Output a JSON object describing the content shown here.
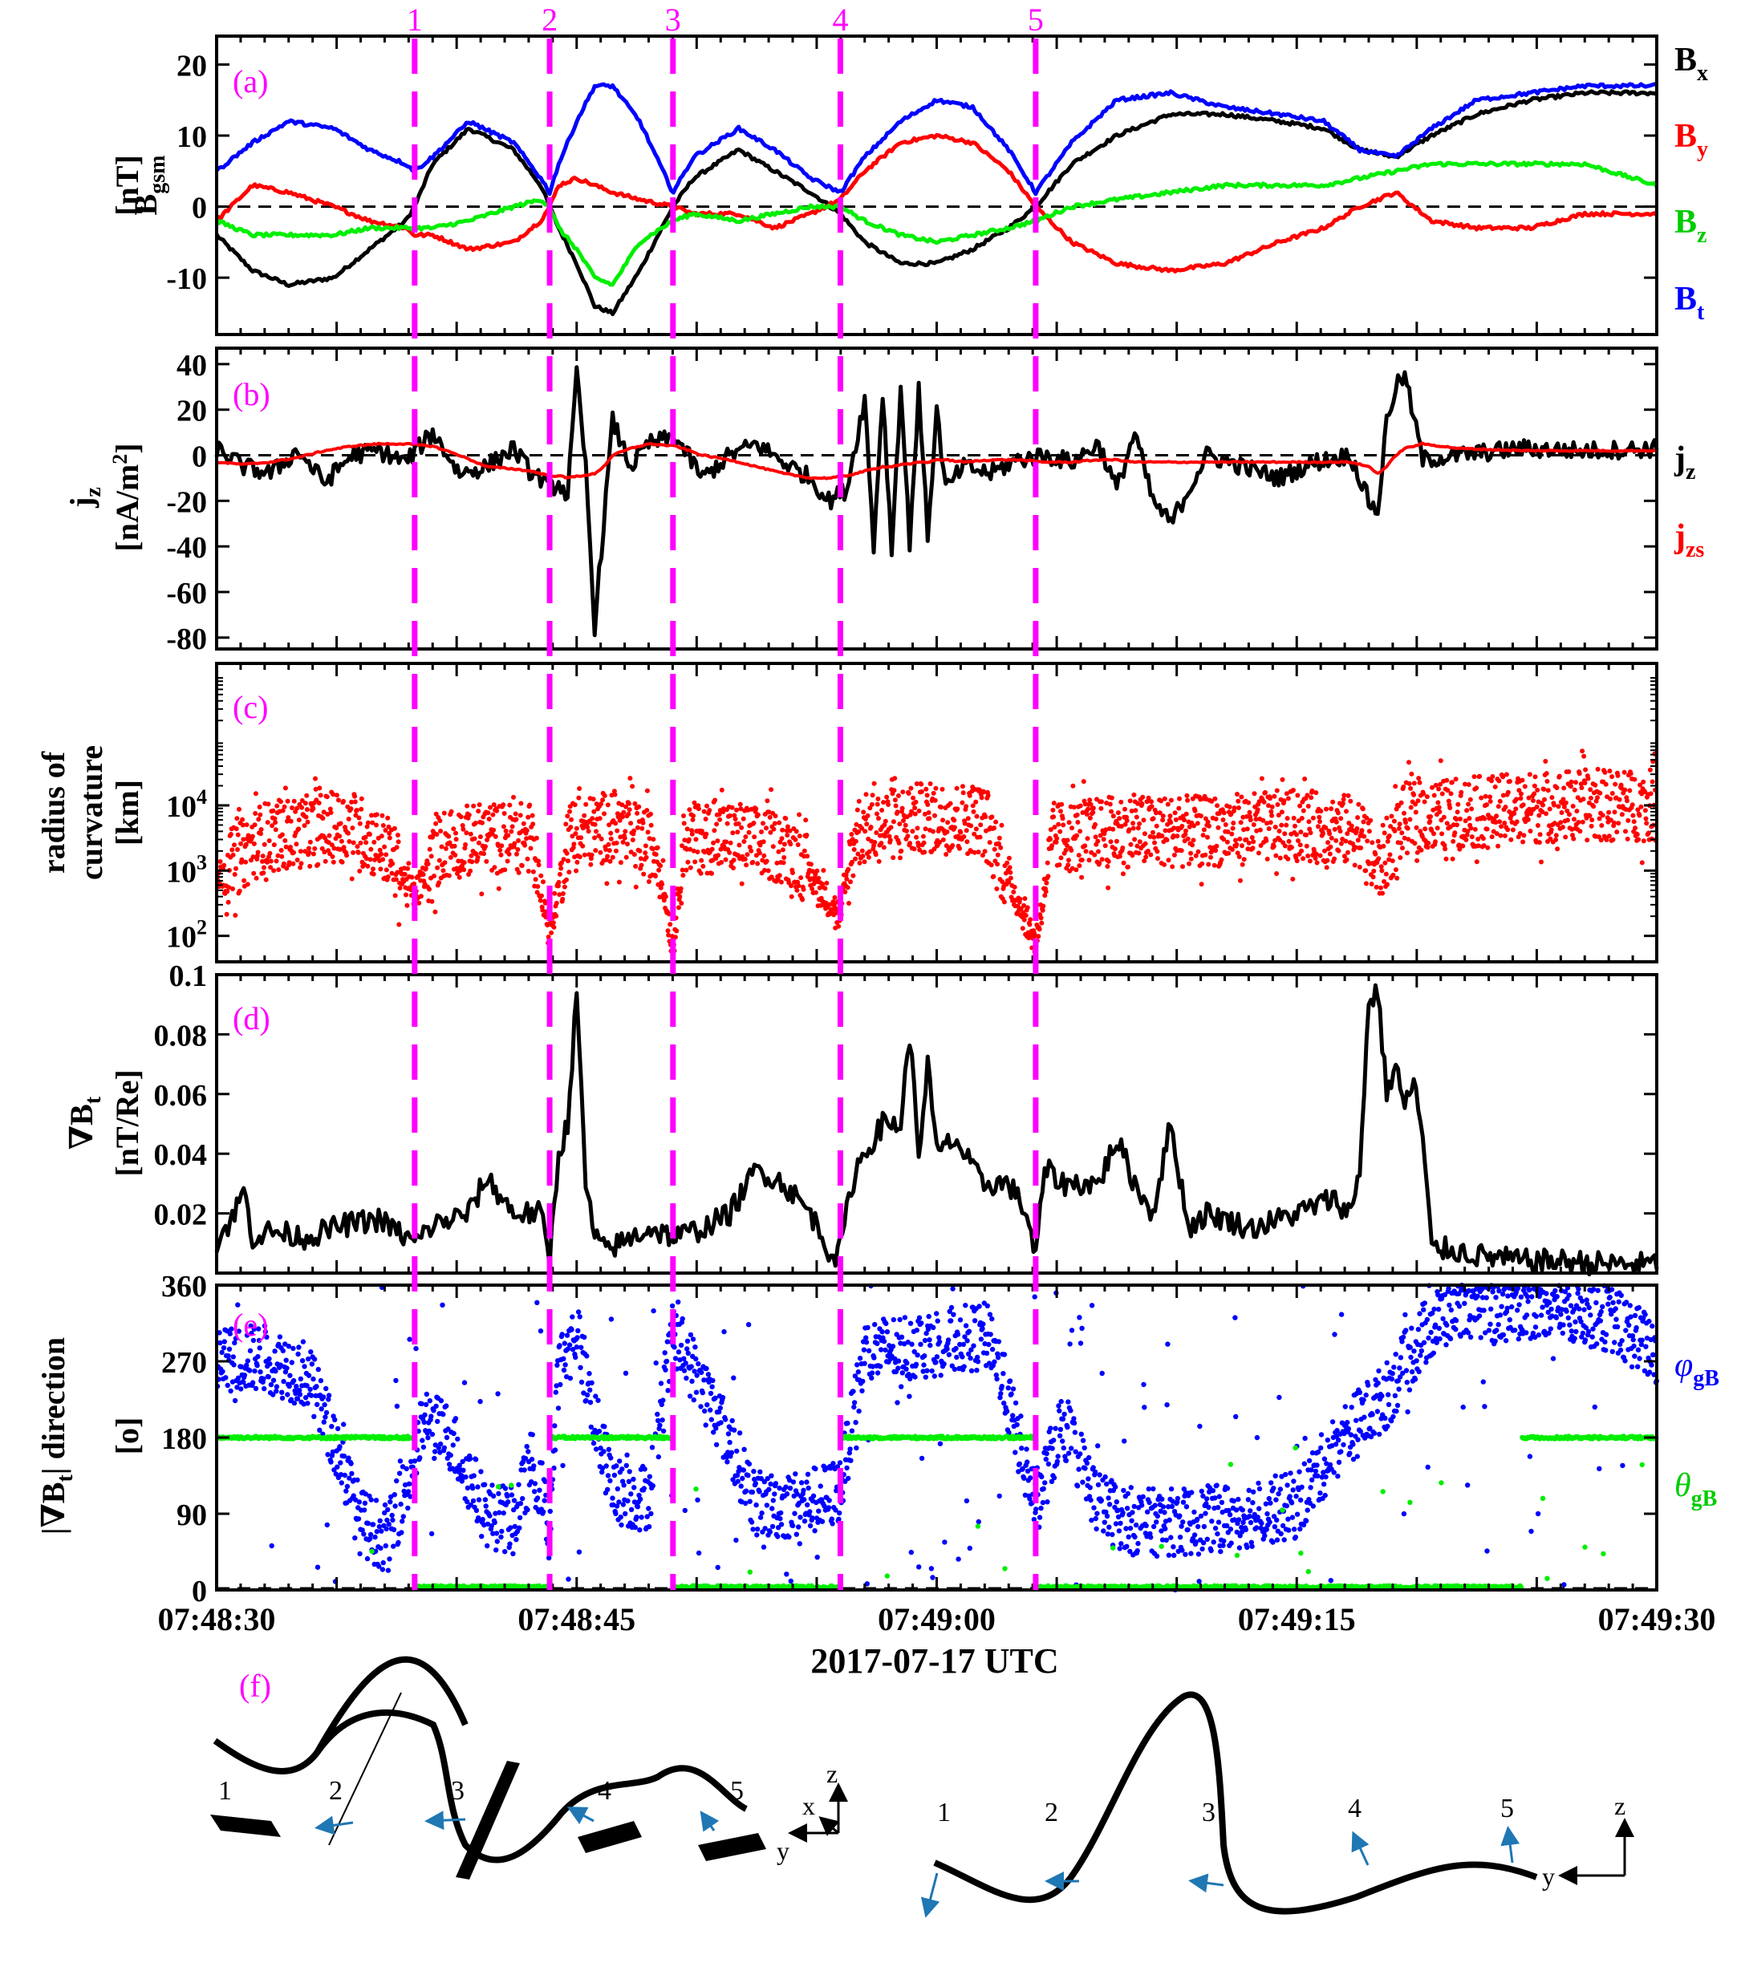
{
  "figure": {
    "time_ticks": [
      "07:48:30",
      "07:48:45",
      "07:49:00",
      "07:49:15",
      "07:49:30"
    ],
    "tick_seconds": [
      0,
      15,
      30,
      45,
      60
    ],
    "xlabel": "2017-07-17 UTC",
    "event_lines": [
      {
        "label": "1",
        "t": 22.0
      },
      {
        "label": "2",
        "t": 37.0
      },
      {
        "label": "3",
        "t": 50.7
      },
      {
        "label": "4",
        "t": 69.3
      },
      {
        "label": "5",
        "t": 91.0
      }
    ],
    "colors": {
      "black": "#000000",
      "red": "#ff0000",
      "blue": "#0000ff",
      "green": "#00ee00",
      "magenta": "#ff00ff",
      "arrow": "#1f77b4"
    }
  },
  "chart_data": [
    {
      "type": "line",
      "panel": "(a)",
      "ylabel_main": "B",
      "ylabel_sub": "gsm",
      "ylabel_unit": "[nT]",
      "ylim": [
        -18,
        24
      ],
      "yticks": [
        -10,
        0,
        10,
        20
      ],
      "yticklabels": [
        "-10",
        "0",
        "10",
        "20"
      ],
      "x_seconds": [
        0,
        4,
        8,
        13,
        17,
        21,
        22,
        24,
        28,
        33,
        36,
        37,
        38,
        40,
        42,
        44,
        47,
        50.7,
        53,
        58,
        62,
        66,
        69.3,
        72,
        76,
        80,
        84,
        88,
        91,
        95,
        100,
        106,
        112,
        118,
        123,
        127,
        131,
        135,
        140,
        146,
        152,
        160
      ],
      "series": [
        {
          "name": "B",
          "sub": "x",
          "color": "#000000",
          "values": [
            -4,
            -9,
            -11,
            -10,
            -6,
            -2,
            0,
            6,
            11,
            8,
            3,
            0,
            -3,
            -8,
            -14,
            -15,
            -9,
            0,
            4,
            8,
            5,
            2,
            -1,
            -5,
            -8,
            -8,
            -6,
            -3,
            0,
            6,
            10,
            13,
            13,
            12,
            11,
            8,
            7,
            10,
            13,
            15,
            16,
            16
          ]
        },
        {
          "name": "B",
          "sub": "y",
          "color": "#ff0000",
          "values": [
            -2,
            3,
            2,
            0,
            -2,
            -3,
            -4,
            -4,
            -6,
            -5,
            -2,
            0,
            3,
            4,
            3,
            2,
            1,
            0,
            -1,
            -1,
            -3,
            -1,
            1,
            5,
            9,
            10,
            9,
            5,
            0,
            -5,
            -8,
            -9,
            -8,
            -5,
            -3,
            0,
            2,
            -2,
            -3,
            -3,
            -1,
            -1
          ]
        },
        {
          "name": "B",
          "sub": "z",
          "color": "#00ee00",
          "values": [
            -2,
            -4,
            -4,
            -4,
            -3,
            -3,
            -3,
            -3,
            -2,
            0,
            1,
            0,
            -3,
            -6,
            -10,
            -11,
            -5,
            -2,
            -1,
            -2,
            -1,
            0,
            0,
            -2,
            -4,
            -5,
            -4,
            -3,
            -2,
            0,
            1,
            2,
            3,
            3,
            3,
            4,
            5,
            6,
            6,
            6,
            6,
            3
          ]
        },
        {
          "name": "B",
          "sub": "t",
          "color": "#0000ff",
          "values": [
            5,
            9,
            12,
            11,
            8,
            6,
            5,
            7,
            12,
            9,
            4,
            2,
            6,
            12,
            17,
            17,
            12,
            2,
            7,
            11,
            8,
            4,
            2,
            7,
            12,
            15,
            14,
            8,
            2,
            9,
            15,
            16,
            14,
            13,
            12,
            8,
            7,
            11,
            15,
            16,
            17,
            17
          ]
        }
      ]
    },
    {
      "type": "line",
      "panel": "(b)",
      "ylabel_main": "j",
      "ylabel_sub": "z",
      "ylabel_unit": "[nA/m",
      "ylabel_unit_sup": "2",
      "ylabel_unit_end": "]",
      "ylim": [
        -85,
        47
      ],
      "yticks": [
        -80,
        -60,
        -40,
        -20,
        0,
        20,
        40
      ],
      "yticklabels": [
        "-80",
        "-60",
        "-40",
        "-20",
        "0",
        "20",
        "40"
      ],
      "x_seconds": [
        0,
        3,
        6,
        9,
        12,
        15,
        18,
        21,
        24,
        27,
        30,
        33,
        35,
        36,
        37,
        38,
        39,
        40,
        41,
        42,
        43,
        44,
        46,
        48,
        51,
        54,
        57,
        60,
        63,
        66,
        68,
        70,
        72,
        73,
        74,
        75,
        76,
        77,
        78,
        79,
        80,
        81,
        83,
        86,
        89,
        92,
        95,
        98,
        100,
        102,
        104,
        106,
        110,
        114,
        118,
        122,
        126,
        128,
        129,
        130,
        131,
        132,
        134,
        138,
        145,
        152,
        160
      ],
      "series": [
        {
          "name": "j",
          "sub": "z",
          "color": "#000000",
          "values": [
            3,
            -5,
            -8,
            2,
            -12,
            0,
            2,
            -3,
            10,
            -8,
            -5,
            3,
            -8,
            -10,
            -15,
            -12,
            -18,
            35,
            -5,
            -75,
            -30,
            15,
            -5,
            5,
            8,
            -10,
            0,
            5,
            -3,
            -10,
            -20,
            -15,
            25,
            -40,
            28,
            -42,
            30,
            -38,
            28,
            -35,
            20,
            -15,
            -5,
            -8,
            -2,
            0,
            -3,
            5,
            -15,
            10,
            -20,
            -30,
            0,
            -5,
            -10,
            -3,
            0,
            -20,
            -25,
            15,
            30,
            35,
            -2,
            0,
            3,
            2,
            3
          ]
        },
        {
          "name": "j",
          "sub": "zs",
          "color": "#ff0000",
          "values": [
            -3,
            -4,
            -3,
            -1,
            2,
            4,
            5,
            5,
            4,
            0,
            -5,
            -6,
            -7,
            -8,
            -9,
            -9,
            -10,
            -9,
            -9,
            -8,
            -5,
            0,
            3,
            5,
            4,
            0,
            -2,
            -5,
            -8,
            -10,
            -10,
            -9,
            -7,
            -6,
            -5,
            -5,
            -4,
            -4,
            -3,
            -3,
            -2,
            -2,
            -3,
            -2,
            -2,
            -3,
            -3,
            -2,
            -2,
            -3,
            -3,
            -3,
            -3,
            -3,
            -3,
            -3,
            -3,
            -5,
            -8,
            -5,
            0,
            3,
            5,
            3,
            2,
            2,
            2
          ]
        }
      ]
    },
    {
      "type": "scatter",
      "panel": "(c)",
      "ylabel_line1": "radius of",
      "ylabel_line2": "curvature",
      "ylabel_unit": "[km]",
      "yscale": "log",
      "ylim": [
        40,
        1500000
      ],
      "yticks": [
        100,
        1000,
        10000
      ],
      "yticklabels": [
        [
          "10",
          "2"
        ],
        [
          "10",
          "3"
        ],
        [
          "10",
          "4"
        ]
      ],
      "color": "#ff0000",
      "profile": {
        "x_seconds": [
          0,
          5,
          10,
          15,
          19,
          22,
          25,
          30,
          35,
          37,
          39,
          44,
          49,
          50.7,
          52,
          58,
          64,
          69.3,
          71,
          78,
          85,
          91,
          93,
          100,
          110,
          120,
          127,
          129,
          132,
          140,
          150,
          160
        ],
        "log10_values": [
          2.9,
          3.5,
          3.6,
          3.7,
          3.3,
          2.6,
          3.4,
          3.5,
          3.5,
          2.0,
          3.5,
          3.7,
          3.3,
          1.8,
          3.5,
          3.5,
          3.3,
          2.3,
          3.6,
          3.8,
          3.8,
          1.9,
          3.5,
          3.6,
          3.6,
          3.7,
          3.6,
          3.0,
          3.8,
          3.9,
          4.0,
          4.0
        ]
      }
    },
    {
      "type": "line",
      "panel": "(d)",
      "ylabel_main": "∇B",
      "ylabel_sub": "t",
      "ylabel_unit": "[nT/Re]",
      "ylim": [
        0,
        0.1
      ],
      "yticks": [
        0.02,
        0.04,
        0.06,
        0.08,
        0.1
      ],
      "yticklabels": [
        "0.02",
        "0.04",
        "0.06",
        "0.08",
        "0.1"
      ],
      "x_seconds": [
        0,
        2,
        3,
        4,
        6,
        10,
        14,
        18,
        22,
        24,
        28,
        30,
        33,
        36,
        37,
        38,
        39,
        40,
        41,
        42,
        43,
        45,
        48,
        51,
        54,
        57,
        60,
        63,
        66,
        68,
        69,
        71,
        73,
        74,
        75,
        76,
        77,
        78,
        79,
        80,
        82,
        85,
        88,
        90,
        91,
        92,
        94,
        98,
        100,
        102,
        104,
        106,
        108,
        110,
        115,
        120,
        124,
        126,
        127,
        128,
        129,
        130,
        131,
        132,
        133,
        134,
        135,
        137,
        140,
        145,
        150,
        155,
        160
      ],
      "series": [
        {
          "name": "∇B",
          "sub": "t",
          "color": "#000000",
          "values": [
            0.01,
            0.02,
            0.028,
            0.012,
            0.014,
            0.012,
            0.016,
            0.018,
            0.01,
            0.016,
            0.02,
            0.032,
            0.02,
            0.02,
            0.005,
            0.04,
            0.05,
            0.093,
            0.03,
            0.012,
            0.008,
            0.01,
            0.015,
            0.012,
            0.015,
            0.02,
            0.035,
            0.03,
            0.02,
            0.008,
            0.005,
            0.035,
            0.045,
            0.05,
            0.05,
            0.05,
            0.08,
            0.04,
            0.07,
            0.04,
            0.045,
            0.03,
            0.03,
            0.02,
            0.005,
            0.035,
            0.03,
            0.03,
            0.045,
            0.03,
            0.02,
            0.05,
            0.015,
            0.02,
            0.015,
            0.02,
            0.025,
            0.02,
            0.035,
            0.09,
            0.095,
            0.06,
            0.07,
            0.055,
            0.065,
            0.045,
            0.008,
            0.008,
            0.006,
            0.004,
            0.004,
            0.003,
            0.003
          ]
        }
      ]
    },
    {
      "type": "scatter",
      "panel": "(e)",
      "ylabel_main": "|∇B",
      "ylabel_sub": "t",
      "ylabel_main_end": "| direction",
      "ylabel_unit": "[o]",
      "ylim": [
        0,
        360
      ],
      "yticks": [
        0,
        90,
        180,
        270,
        360
      ],
      "yticklabels": [
        "0",
        "90",
        "180",
        "270",
        "360"
      ],
      "series": [
        {
          "name": "φ",
          "sub": "gB",
          "color": "#0000ff",
          "x_seconds": [
            0,
            5,
            10,
            13,
            16,
            19,
            22,
            23,
            26,
            30,
            33,
            35,
            36,
            37,
            38,
            40,
            42,
            44,
            46,
            48,
            50.7,
            52,
            56,
            60,
            64,
            68,
            69.3,
            72,
            78,
            86,
            91,
            94,
            98,
            102,
            108,
            115,
            120,
            125,
            130,
            134,
            138,
            142,
            148,
            155,
            160
          ],
          "values": [
            270,
            275,
            255,
            180,
            80,
            60,
            150,
            200,
            180,
            90,
            80,
            150,
            120,
            70,
            260,
            310,
            200,
            120,
            110,
            110,
            300,
            280,
            200,
            100,
            100,
            110,
            120,
            280,
            290,
            300,
            100,
            200,
            100,
            80,
            80,
            90,
            100,
            180,
            230,
            300,
            340,
            330,
            340,
            320,
            280
          ]
        },
        {
          "name": "θ",
          "sub": "gB",
          "color": "#00ee00",
          "segments": [
            [
              0,
              22,
              180
            ],
            [
              37,
              50.7,
              180
            ],
            [
              69.3,
              91,
              180
            ],
            [
              145,
              160,
              180
            ]
          ],
          "baseline": 2
        }
      ]
    },
    {
      "type": "diagram",
      "panel": "(f)",
      "left_labels": [
        "1",
        "2",
        "3",
        "4",
        "5"
      ],
      "left_axes": {
        "z": "z",
        "x": "x",
        "y": "y"
      },
      "right_labels": [
        "1",
        "2",
        "3",
        "4",
        "5"
      ],
      "right_axes": {
        "z": "z",
        "y": "y"
      }
    }
  ]
}
